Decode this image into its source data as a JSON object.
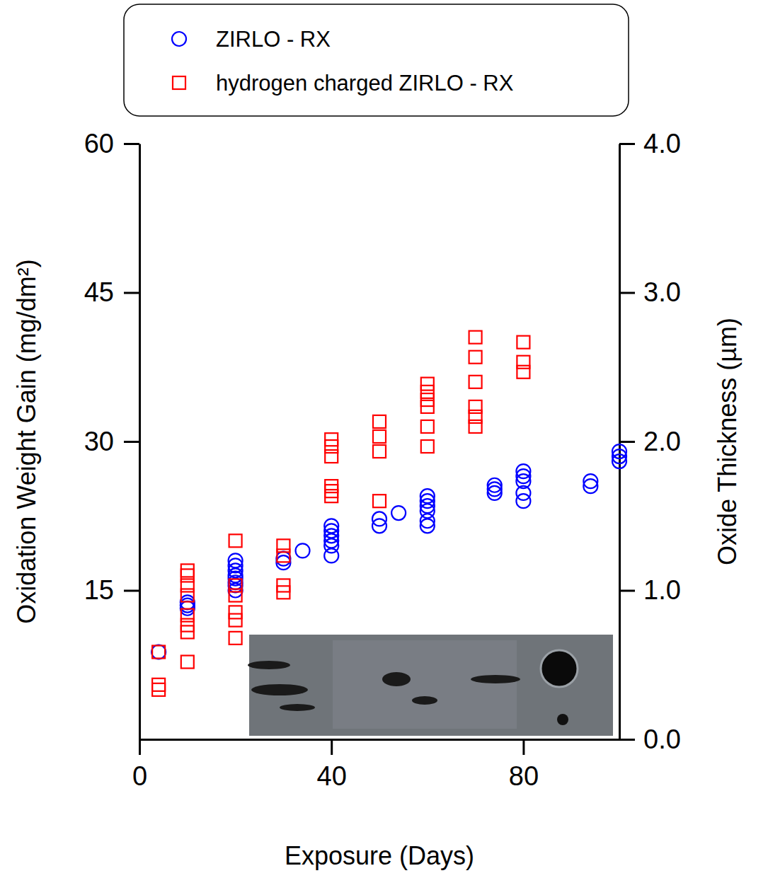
{
  "chart_data": {
    "type": "scatter",
    "xlabel": "Exposure (Days)",
    "ylabel": "Oxidation Weight Gain (mg/dm²)",
    "y2label": "Oxide Thickness (µm)",
    "xlim": [
      0,
      100
    ],
    "xticks": [
      0,
      40,
      80
    ],
    "ylim": [
      0,
      60
    ],
    "yticks": [
      15,
      30,
      45,
      60
    ],
    "y2lim": [
      0,
      4
    ],
    "y2ticks": [
      {
        "value": 0,
        "label": "0.0"
      },
      {
        "value": 1,
        "label": "1.0"
      },
      {
        "value": 2,
        "label": "2.0"
      },
      {
        "value": 3,
        "label": "3.0"
      },
      {
        "value": 4,
        "label": "4.0"
      }
    ],
    "grid": false,
    "legend": "top",
    "series": [
      {
        "name": "ZIRLO - RX",
        "color": "#0000ff",
        "marker": "circle",
        "x": [
          4,
          10,
          10,
          10,
          20,
          20,
          20,
          20,
          20,
          20,
          20,
          20,
          30,
          30,
          34,
          40,
          40,
          40,
          40,
          40,
          40,
          50,
          50,
          54,
          60,
          60,
          60,
          60,
          60,
          60,
          74,
          74,
          74,
          80,
          80,
          80,
          80,
          80,
          94,
          94,
          100,
          100,
          100
        ],
        "values": [
          8.8,
          13.2,
          13.5,
          13.8,
          15.0,
          15.5,
          15.8,
          16.2,
          16.5,
          17.0,
          17.5,
          18.0,
          17.8,
          18.2,
          19.0,
          18.5,
          19.5,
          20.0,
          20.5,
          21.0,
          21.5,
          21.5,
          22.2,
          22.8,
          21.5,
          22.0,
          23.0,
          23.5,
          24.0,
          24.5,
          24.8,
          25.2,
          25.6,
          24.0,
          24.8,
          26.0,
          26.5,
          27.0,
          25.5,
          26.0,
          28.0,
          28.5,
          29.0
        ]
      },
      {
        "name": "hydrogen charged ZIRLO - RX",
        "color": "#ff0000",
        "marker": "square",
        "x": [
          4,
          4,
          4,
          10,
          10,
          10,
          10,
          10,
          10,
          10,
          10,
          20,
          20,
          20,
          20,
          20,
          20,
          30,
          30,
          30,
          30,
          40,
          40,
          40,
          40,
          40,
          40,
          50,
          50,
          50,
          50,
          60,
          60,
          60,
          60,
          60,
          60,
          70,
          70,
          70,
          70,
          70,
          70,
          80,
          80,
          80
        ],
        "values": [
          8.8,
          5.5,
          5.0,
          7.8,
          10.8,
          11.5,
          12.5,
          14.5,
          15.5,
          16.5,
          17.0,
          10.2,
          12.0,
          12.8,
          14.5,
          15.5,
          20.0,
          14.8,
          15.5,
          18.5,
          19.5,
          24.5,
          25.0,
          25.5,
          28.5,
          29.5,
          30.2,
          24.0,
          29.0,
          30.5,
          32.0,
          29.5,
          31.5,
          33.5,
          34.2,
          35.0,
          35.8,
          31.5,
          32.5,
          33.5,
          36.0,
          38.5,
          40.5,
          37.0,
          38.0,
          40.0
        ]
      }
    ]
  }
}
